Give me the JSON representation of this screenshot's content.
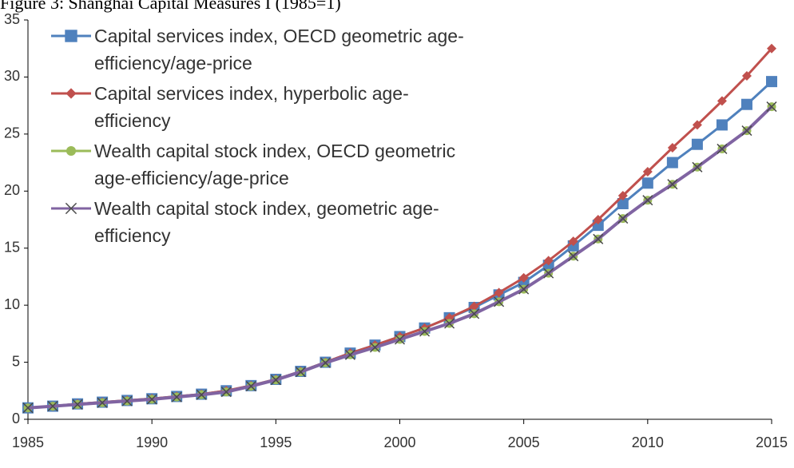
{
  "chart_data": {
    "type": "line",
    "title": "Figure 3: Shanghai Capital Measures I (1985=1)",
    "x": [
      1985,
      1986,
      1987,
      1988,
      1989,
      1990,
      1991,
      1992,
      1993,
      1994,
      1995,
      1996,
      1997,
      1998,
      1999,
      2000,
      2001,
      2002,
      2003,
      2004,
      2005,
      2006,
      2007,
      2008,
      2009,
      2010,
      2011,
      2012,
      2013,
      2014,
      2015
    ],
    "series": [
      {
        "name": "Capital services index, OECD geometric age-efficiency/age-price",
        "color": "#4f81bd",
        "marker": "square",
        "values": [
          1,
          1.15,
          1.35,
          1.5,
          1.65,
          1.8,
          2.0,
          2.2,
          2.5,
          2.95,
          3.5,
          4.2,
          5.0,
          5.8,
          6.5,
          7.25,
          8.0,
          8.9,
          9.8,
          10.9,
          12.0,
          13.5,
          15.2,
          17.0,
          18.9,
          20.7,
          22.5,
          24.1,
          25.8,
          27.6,
          29.6
        ]
      },
      {
        "name": "Capital services index, hyperbolic age-efficiency",
        "color": "#c0504d",
        "marker": "diamond",
        "values": [
          1,
          1.15,
          1.35,
          1.5,
          1.65,
          1.8,
          2.0,
          2.2,
          2.5,
          2.95,
          3.5,
          4.2,
          5.0,
          5.8,
          6.5,
          7.25,
          8.0,
          8.9,
          9.9,
          11.1,
          12.4,
          13.9,
          15.6,
          17.5,
          19.6,
          21.7,
          23.8,
          25.8,
          27.9,
          30.1,
          32.5
        ]
      },
      {
        "name": "Wealth capital stock index, OECD geometric age-efficiency/age-price",
        "color": "#9bbb59",
        "marker": "circle",
        "values": [
          1,
          1.15,
          1.3,
          1.45,
          1.6,
          1.75,
          1.95,
          2.15,
          2.4,
          2.9,
          3.45,
          4.15,
          4.95,
          5.65,
          6.3,
          7.0,
          7.7,
          8.4,
          9.25,
          10.3,
          11.4,
          12.8,
          14.3,
          15.8,
          17.6,
          19.2,
          20.6,
          22.1,
          23.7,
          25.3,
          27.4
        ]
      },
      {
        "name": "Wealth capital stock index, geometric age-efficiency",
        "color": "#8064a2",
        "marker": "x",
        "values": [
          1,
          1.15,
          1.3,
          1.45,
          1.6,
          1.75,
          1.95,
          2.15,
          2.4,
          2.9,
          3.45,
          4.15,
          4.95,
          5.65,
          6.3,
          7.0,
          7.7,
          8.4,
          9.25,
          10.3,
          11.4,
          12.8,
          14.3,
          15.8,
          17.6,
          19.2,
          20.6,
          22.1,
          23.7,
          25.3,
          27.4
        ]
      }
    ],
    "xlim": [
      1985,
      2015
    ],
    "xticks": [
      1985,
      1990,
      1995,
      2000,
      2005,
      2010,
      2015
    ],
    "ylim": [
      0,
      35
    ],
    "yticks": [
      0,
      5,
      10,
      15,
      20,
      25,
      30,
      35
    ],
    "legend": "upper-left"
  }
}
